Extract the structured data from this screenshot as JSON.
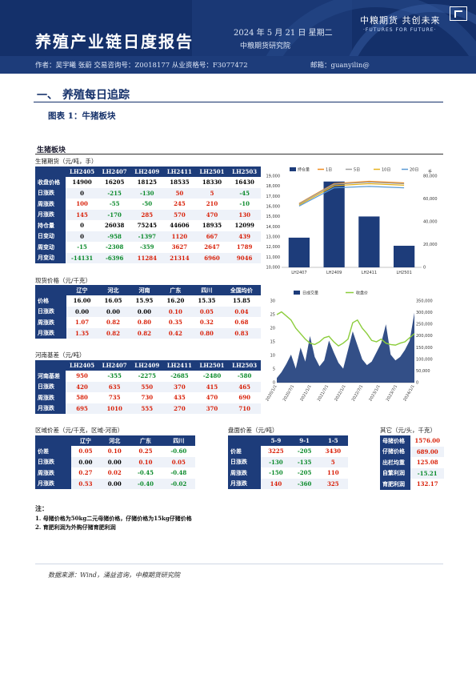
{
  "header": {
    "title": "养殖产业链日度报告",
    "date": "2024 年 5 月 21 日 星期二",
    "institute": "中粮期货研究院",
    "logo_cn": "中粮期货 共创未来",
    "logo_en": "·FUTURES FOR FUTURE·",
    "authors": "作者：吴宇曦  张蔚  交易咨询号：Z0018177 从业资格号：F3077472",
    "email": "邮箱：guanyilin@"
  },
  "section": {
    "number": "一、",
    "title": "养殖每日追踪"
  },
  "figure_title": "图表 1：牛猪板块",
  "panel_title": "生猪板块",
  "futures": {
    "subtitle": "生猪期货（元/吨，手）",
    "columns": [
      "",
      "LH2405",
      "LH2407",
      "LH2409",
      "LH2411",
      "LH2501",
      "LH2503"
    ],
    "rows": [
      {
        "label": "收盘价格",
        "values": [
          "14900",
          "16205",
          "18125",
          "18535",
          "18330",
          "16430"
        ],
        "tone": [
          "nt",
          "nt",
          "nt",
          "nt",
          "nt",
          "nt"
        ]
      },
      {
        "label": "日涨跌",
        "values": [
          "0",
          "-215",
          "-130",
          "50",
          "5",
          "-45"
        ],
        "tone": [
          "nt",
          "dn",
          "dn",
          "up",
          "up",
          "dn"
        ]
      },
      {
        "label": "周涨跌",
        "values": [
          "100",
          "-55",
          "-50",
          "245",
          "210",
          "-10"
        ],
        "tone": [
          "up",
          "dn",
          "dn",
          "up",
          "up",
          "dn"
        ]
      },
      {
        "label": "月涨跌",
        "values": [
          "145",
          "-170",
          "285",
          "570",
          "470",
          "130"
        ],
        "tone": [
          "up",
          "dn",
          "up",
          "up",
          "up",
          "up"
        ]
      },
      {
        "label": "持仓量",
        "values": [
          "0",
          "26038",
          "75245",
          "44606",
          "18935",
          "12099"
        ],
        "tone": [
          "nt",
          "nt",
          "nt",
          "nt",
          "nt",
          "nt"
        ]
      },
      {
        "label": "日变动",
        "values": [
          "0",
          "-958",
          "-1397",
          "1120",
          "667",
          "439"
        ],
        "tone": [
          "nt",
          "dn",
          "dn",
          "up",
          "up",
          "up"
        ]
      },
      {
        "label": "周变动",
        "values": [
          "-15",
          "-2308",
          "-359",
          "3627",
          "2647",
          "1789"
        ],
        "tone": [
          "dn",
          "dn",
          "dn",
          "up",
          "up",
          "up"
        ]
      },
      {
        "label": "月变动",
        "values": [
          "-14131",
          "-6396",
          "11284",
          "21314",
          "6960",
          "9046"
        ],
        "tone": [
          "dn",
          "dn",
          "up",
          "up",
          "up",
          "up"
        ]
      }
    ]
  },
  "spot": {
    "subtitle": "现货价格（元/千克）",
    "columns": [
      "",
      "辽宁",
      "河北",
      "河南",
      "广东",
      "四川",
      "全国均价"
    ],
    "rows": [
      {
        "label": "价格",
        "values": [
          "16.00",
          "16.05",
          "15.95",
          "16.20",
          "15.35",
          "15.85"
        ],
        "tone": [
          "nt",
          "nt",
          "nt",
          "nt",
          "nt",
          "nt"
        ]
      },
      {
        "label": "日涨跌",
        "values": [
          "0.00",
          "0.00",
          "0.00",
          "0.10",
          "0.05",
          "0.04"
        ],
        "tone": [
          "nt",
          "nt",
          "nt",
          "up",
          "up",
          "up"
        ]
      },
      {
        "label": "周涨跌",
        "values": [
          "1.07",
          "0.82",
          "0.80",
          "0.35",
          "0.32",
          "0.68"
        ],
        "tone": [
          "up",
          "up",
          "up",
          "up",
          "up",
          "up"
        ]
      },
      {
        "label": "月涨跌",
        "values": [
          "1.35",
          "0.82",
          "0.82",
          "0.42",
          "0.80",
          "0.83"
        ],
        "tone": [
          "up",
          "up",
          "up",
          "up",
          "up",
          "up"
        ]
      }
    ]
  },
  "basis": {
    "subtitle": "河南基差（元/吨）",
    "columns": [
      "",
      "LH2405",
      "LH2407",
      "LH2409",
      "LH2411",
      "LH2501",
      "LH2503"
    ],
    "rows": [
      {
        "label": "河南基差",
        "values": [
          "950",
          "-355",
          "-2275",
          "-2685",
          "-2480",
          "-580"
        ],
        "tone": [
          "up",
          "dn",
          "dn",
          "dn",
          "dn",
          "dn"
        ]
      },
      {
        "label": "日涨跌",
        "values": [
          "420",
          "635",
          "550",
          "370",
          "415",
          "465"
        ],
        "tone": [
          "up",
          "up",
          "up",
          "up",
          "up",
          "up"
        ]
      },
      {
        "label": "周涨跌",
        "values": [
          "580",
          "735",
          "730",
          "435",
          "470",
          "690"
        ],
        "tone": [
          "up",
          "up",
          "up",
          "up",
          "up",
          "up"
        ]
      },
      {
        "label": "月涨跌",
        "values": [
          "695",
          "1010",
          "555",
          "270",
          "370",
          "710"
        ],
        "tone": [
          "up",
          "up",
          "up",
          "up",
          "up",
          "up"
        ]
      }
    ]
  },
  "region": {
    "subtitle": "区域价差（元/千克，区域-河南）",
    "columns": [
      "",
      "辽宁",
      "河北",
      "广东",
      "四川"
    ],
    "rows": [
      {
        "label": "价差",
        "values": [
          "0.05",
          "0.10",
          "0.25",
          "-0.60"
        ],
        "tone": [
          "up",
          "up",
          "up",
          "dn"
        ]
      },
      {
        "label": "日涨跌",
        "values": [
          "0.00",
          "0.00",
          "0.10",
          "0.05"
        ],
        "tone": [
          "nt",
          "nt",
          "up",
          "up"
        ]
      },
      {
        "label": "周涨跌",
        "values": [
          "0.27",
          "0.02",
          "-0.45",
          "-0.48"
        ],
        "tone": [
          "up",
          "up",
          "dn",
          "dn"
        ]
      },
      {
        "label": "月涨跌",
        "values": [
          "0.53",
          "0.00",
          "-0.40",
          "-0.02"
        ],
        "tone": [
          "up",
          "nt",
          "dn",
          "dn"
        ]
      }
    ]
  },
  "spread": {
    "subtitle": "盘面价差（元/吨）",
    "columns": [
      "",
      "5-9",
      "9-1",
      "1-5"
    ],
    "rows": [
      {
        "label": "价差",
        "values": [
          "3225",
          "-205",
          "3430"
        ],
        "tone": [
          "up",
          "dn",
          "up"
        ]
      },
      {
        "label": "日涨跌",
        "values": [
          "-130",
          "-135",
          "5"
        ],
        "tone": [
          "dn",
          "dn",
          "up"
        ]
      },
      {
        "label": "周涨跌",
        "values": [
          "-150",
          "-205",
          "110"
        ],
        "tone": [
          "dn",
          "dn",
          "up"
        ]
      },
      {
        "label": "月涨跌",
        "values": [
          "140",
          "-360",
          "325"
        ],
        "tone": [
          "up",
          "dn",
          "up"
        ]
      }
    ]
  },
  "other": {
    "subtitle": "其它（元/头，千克）",
    "rows": [
      {
        "label": "母猪价格",
        "value": "1576.00",
        "tone": "up"
      },
      {
        "label": "仔猪价格",
        "value": "689.00",
        "tone": "up"
      },
      {
        "label": "出栏均重",
        "value": "125.08",
        "tone": "up"
      },
      {
        "label": "自繁利润",
        "value": "-15.21",
        "tone": "dn"
      },
      {
        "label": "育肥利润",
        "value": "132.17",
        "tone": "up"
      }
    ]
  },
  "notes": {
    "title": "注：",
    "line1": "1. 母猪价格为50kg二元母猪价格，仔猪价格为15kg仔猪价格",
    "line2": "2. 育肥利润为外购仔猪育肥利润"
  },
  "footer": "数据来源：Wind，涌益咨询，中粮期货研究院",
  "colors": {
    "navy": "#1d3c7a",
    "up": "#d81e06",
    "down": "#0a8a2a",
    "bar": "#1d3c7a",
    "orange": "#f08c1e",
    "gray": "#a0a0a0",
    "yellow": "#e6b31e",
    "blue": "#5b9bd5",
    "green": "#8ccd3c"
  },
  "chart_data": [
    {
      "type": "bar",
      "title": "",
      "categories": [
        "LH2407",
        "LH2409",
        "LH2411",
        "LH2501"
      ],
      "legend": [
        "持仓量",
        "1日",
        "5日",
        "10日",
        "20日"
      ],
      "legend_position": "top",
      "left_ticks": [
        "10,000",
        "11,000",
        "12,000",
        "13,000",
        "14,000",
        "15,000",
        "16,000",
        "17,000",
        "18,000",
        "19,000"
      ],
      "right_ticks": [
        "0",
        "20,000",
        "40,000",
        "60,000",
        "80,000"
      ],
      "right_unit": "手",
      "bar_values": [
        26038,
        75245,
        44606,
        18935
      ],
      "right_ylim": [
        0,
        80000
      ],
      "left_ylim": [
        10000,
        19000
      ],
      "series": [
        {
          "name": "1日",
          "values": [
            16300,
            18255,
            18485,
            18325
          ]
        },
        {
          "name": "5日",
          "values": [
            16250,
            18200,
            18400,
            18250
          ]
        },
        {
          "name": "10日",
          "values": [
            16150,
            18050,
            18250,
            18100
          ]
        },
        {
          "name": "20日",
          "values": [
            16050,
            17850,
            17980,
            17850
          ]
        }
      ]
    },
    {
      "type": "area",
      "title": "",
      "legend": [
        "日成交量",
        "收盘价"
      ],
      "legend_position": "top",
      "x_ticks": [
        "2020/1/1",
        "2020/7/1",
        "2021/1/1",
        "2021/7/1",
        "2022/1/1",
        "2022/7/1",
        "2023/1/1",
        "2023/7/1",
        "2024/1/1"
      ],
      "left_ticks": [
        "0",
        "5",
        "10",
        "15",
        "20",
        "25",
        "30"
      ],
      "right_ticks": [
        "0",
        "50,000",
        "100,000",
        "150,000",
        "200,000",
        "250,000",
        "300,000",
        "350,000"
      ],
      "left_ylim": [
        0,
        30
      ],
      "right_ylim": [
        0,
        350000
      ],
      "volume": [
        20000,
        45000,
        80000,
        120000,
        60000,
        150000,
        90000,
        200000,
        110000,
        70000,
        95000,
        180000,
        130000,
        85000,
        60000,
        140000,
        220000,
        160000,
        100000,
        75000,
        90000,
        130000,
        170000,
        250000,
        120000,
        95000,
        110000,
        140000,
        180000,
        300000
      ],
      "price": [
        25,
        26,
        24.5,
        23,
        20,
        18,
        16,
        14.5,
        14,
        15,
        16.5,
        17,
        15,
        13.5,
        14.5,
        16,
        22,
        23,
        20,
        18,
        15.5,
        15,
        16,
        14.5,
        14,
        13.8,
        14.5,
        15,
        16.5,
        18
      ]
    }
  ]
}
